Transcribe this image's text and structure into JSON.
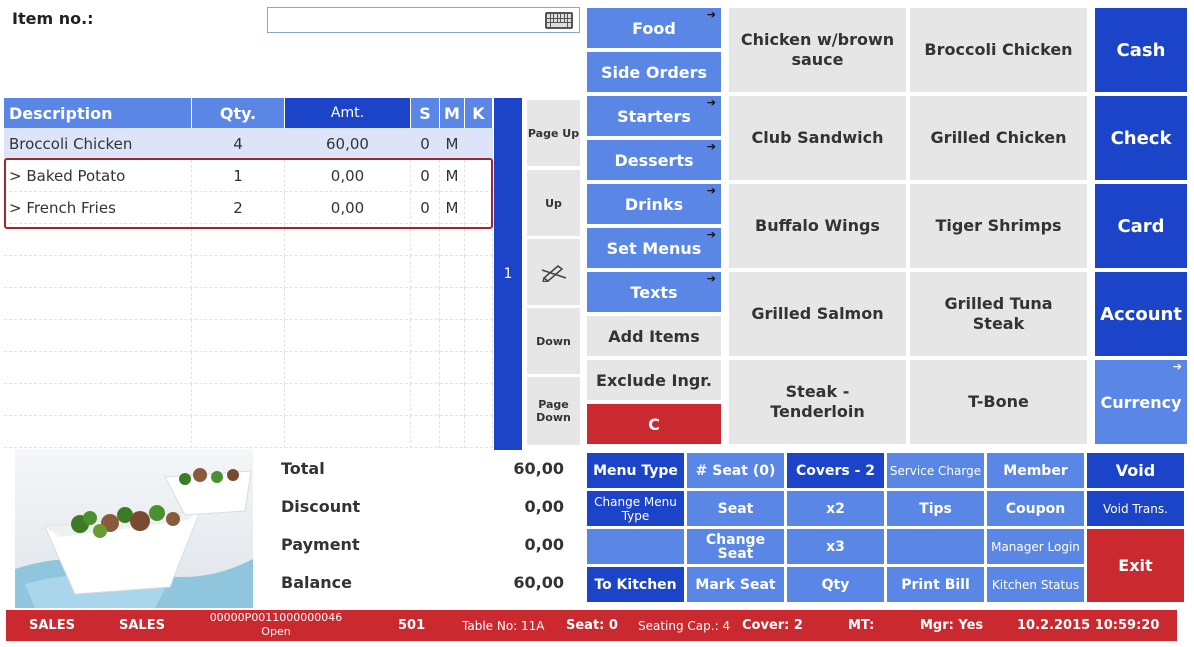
{
  "item_no": {
    "label": "Item no.:",
    "value": "",
    "placeholder": ""
  },
  "order_table": {
    "columns": {
      "description": "Description",
      "qty": "Qty.",
      "amt": "Amt.",
      "s": "S",
      "m": "M",
      "k": "K"
    },
    "rows": [
      {
        "description": "Broccoli Chicken",
        "qty": "4",
        "amt": "60,00",
        "s": "0",
        "m": "M",
        "k": ""
      },
      {
        "description": "> Baked Potato",
        "qty": "1",
        "amt": "0,00",
        "s": "0",
        "m": "M",
        "k": ""
      },
      {
        "description": "> French Fries",
        "qty": "2",
        "amt": "0,00",
        "s": "0",
        "m": "M",
        "k": ""
      }
    ]
  },
  "seat_indicator": "1",
  "navigation": {
    "page_up": "Page Up",
    "up": "Up",
    "down": "Down",
    "page_down": "Page Down",
    "edit_icon": "pen-strike-icon"
  },
  "categories": [
    {
      "label": "Food",
      "style": "blue",
      "arrow": "➔"
    },
    {
      "label": "Side Orders",
      "style": "blue",
      "arrow": ""
    },
    {
      "label": "Starters",
      "style": "blue",
      "arrow": "➔"
    },
    {
      "label": "Desserts",
      "style": "blue",
      "arrow": "➔"
    },
    {
      "label": "Drinks",
      "style": "blue",
      "arrow": "➔"
    },
    {
      "label": "Set Menus",
      "style": "blue",
      "arrow": "➔"
    },
    {
      "label": "Texts",
      "style": "blue",
      "arrow": "➔"
    },
    {
      "label": "Add Items",
      "style": "grey",
      "arrow": ""
    },
    {
      "label": "Exclude Ingr.",
      "style": "grey",
      "arrow": ""
    },
    {
      "label": "C",
      "style": "red",
      "arrow": ""
    }
  ],
  "menu_items": [
    "Chicken w/brown sauce",
    "Broccoli Chicken",
    "Club Sandwich",
    "Grilled Chicken",
    "Buffalo Wings",
    "Tiger Shrimps",
    "Grilled Salmon",
    "Grilled Tuna Steak",
    "Steak - Tenderloin",
    "T-Bone"
  ],
  "payment": {
    "cash": "Cash",
    "check": "Check",
    "card": "Card",
    "account": "Account",
    "currency": "Currency",
    "currency_arrow": "➔"
  },
  "totals": [
    {
      "label": "Total",
      "value": "60,00"
    },
    {
      "label": "Discount",
      "value": "0,00"
    },
    {
      "label": "Payment",
      "value": "0,00"
    },
    {
      "label": "Balance",
      "value": "60,00"
    }
  ],
  "functions": {
    "menu_type": "Menu Type",
    "seat_count": "# Seat (0)",
    "covers": "Covers - 2",
    "service_charge": "Service Charge",
    "member": "Member",
    "void": "Void",
    "change_menu_type": "Change Menu Type",
    "seat": "Seat",
    "x2": "x2",
    "tips": "Tips",
    "coupon": "Coupon",
    "void_trans": "Void Trans.",
    "change_seat": "Change Seat",
    "x3": "x3",
    "manager_login": "Manager Login",
    "exit": "Exit",
    "to_kitchen": "To Kitchen",
    "mark_seat": "Mark Seat",
    "qty": "Qty",
    "print_bill": "Print Bill",
    "kitchen_status": "Kitchen Status"
  },
  "status_bar": {
    "mode1": "SALES",
    "mode2": "SALES",
    "order_no": "00000P0011000000046",
    "order_state": "Open",
    "terminal": "501",
    "table": "Table No: 11A",
    "seat": "Seat: 0",
    "seating_cap": "Seating Cap.: 4",
    "cover": "Cover: 2",
    "mt": "MT:",
    "mgr": "Mgr: Yes",
    "datetime": "10.2.2015 10:59:20"
  },
  "colors": {
    "dark_blue": "#1c44c8",
    "light_blue": "#5a86e6",
    "red": "#c9292f",
    "grey": "#e6e6e6",
    "selected_row": "#dde3f8"
  }
}
